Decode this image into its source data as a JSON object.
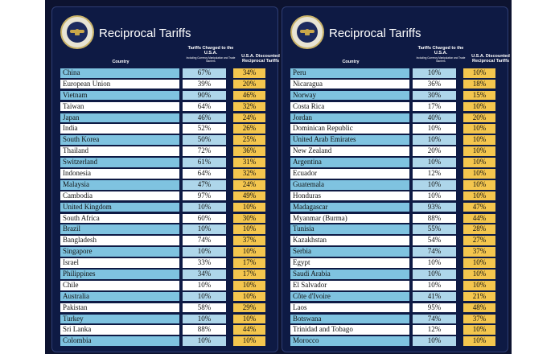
{
  "panels": [
    {
      "title": "Reciprocal Tariffs",
      "headers": {
        "country": "Country",
        "charged": "Tariffs Charged to the U.S.A.",
        "charged_sub": "Including Currency Manipulation and Trade Barriers",
        "discounted": "U.S.A. Discounted Reciprocal Tariffs"
      },
      "rows": [
        {
          "country": "China",
          "charged": "67%",
          "discounted": "34%"
        },
        {
          "country": "European Union",
          "charged": "39%",
          "discounted": "20%"
        },
        {
          "country": "Vietnam",
          "charged": "90%",
          "discounted": "46%"
        },
        {
          "country": "Taiwan",
          "charged": "64%",
          "discounted": "32%"
        },
        {
          "country": "Japan",
          "charged": "46%",
          "discounted": "24%"
        },
        {
          "country": "India",
          "charged": "52%",
          "discounted": "26%"
        },
        {
          "country": "South Korea",
          "charged": "50%",
          "discounted": "25%"
        },
        {
          "country": "Thailand",
          "charged": "72%",
          "discounted": "36%"
        },
        {
          "country": "Switzerland",
          "charged": "61%",
          "discounted": "31%"
        },
        {
          "country": "Indonesia",
          "charged": "64%",
          "discounted": "32%"
        },
        {
          "country": "Malaysia",
          "charged": "47%",
          "discounted": "24%"
        },
        {
          "country": "Cambodia",
          "charged": "97%",
          "discounted": "49%"
        },
        {
          "country": "United Kingdom",
          "charged": "10%",
          "discounted": "10%"
        },
        {
          "country": "South Africa",
          "charged": "60%",
          "discounted": "30%"
        },
        {
          "country": "Brazil",
          "charged": "10%",
          "discounted": "10%"
        },
        {
          "country": "Bangladesh",
          "charged": "74%",
          "discounted": "37%"
        },
        {
          "country": "Singapore",
          "charged": "10%",
          "discounted": "10%"
        },
        {
          "country": "Israel",
          "charged": "33%",
          "discounted": "17%"
        },
        {
          "country": "Philippines",
          "charged": "34%",
          "discounted": "17%"
        },
        {
          "country": "Chile",
          "charged": "10%",
          "discounted": "10%"
        },
        {
          "country": "Australia",
          "charged": "10%",
          "discounted": "10%"
        },
        {
          "country": "Pakistan",
          "charged": "58%",
          "discounted": "29%"
        },
        {
          "country": "Turkey",
          "charged": "10%",
          "discounted": "10%"
        },
        {
          "country": "Sri Lanka",
          "charged": "88%",
          "discounted": "44%"
        },
        {
          "country": "Colombia",
          "charged": "10%",
          "discounted": "10%"
        }
      ]
    },
    {
      "title": "Reciprocal Tariffs",
      "headers": {
        "country": "Country",
        "charged": "Tariffs Charged to the U.S.A.",
        "charged_sub": "Including Currency Manipulation and Trade Barriers",
        "discounted": "U.S.A. Discounted Reciprocal Tariffs"
      },
      "rows": [
        {
          "country": "Peru",
          "charged": "10%",
          "discounted": "10%"
        },
        {
          "country": "Nicaragua",
          "charged": "36%",
          "discounted": "18%"
        },
        {
          "country": "Norway",
          "charged": "30%",
          "discounted": "15%"
        },
        {
          "country": "Costa Rica",
          "charged": "17%",
          "discounted": "10%"
        },
        {
          "country": "Jordan",
          "charged": "40%",
          "discounted": "20%"
        },
        {
          "country": "Dominican Republic",
          "charged": "10%",
          "discounted": "10%"
        },
        {
          "country": "United Arab Emirates",
          "charged": "10%",
          "discounted": "10%"
        },
        {
          "country": "New Zealand",
          "charged": "20%",
          "discounted": "10%"
        },
        {
          "country": "Argentina",
          "charged": "10%",
          "discounted": "10%"
        },
        {
          "country": "Ecuador",
          "charged": "12%",
          "discounted": "10%"
        },
        {
          "country": "Guatemala",
          "charged": "10%",
          "discounted": "10%"
        },
        {
          "country": "Honduras",
          "charged": "10%",
          "discounted": "10%"
        },
        {
          "country": "Madagascar",
          "charged": "93%",
          "discounted": "47%"
        },
        {
          "country": "Myanmar (Burma)",
          "charged": "88%",
          "discounted": "44%"
        },
        {
          "country": "Tunisia",
          "charged": "55%",
          "discounted": "28%"
        },
        {
          "country": "Kazakhstan",
          "charged": "54%",
          "discounted": "27%"
        },
        {
          "country": "Serbia",
          "charged": "74%",
          "discounted": "37%"
        },
        {
          "country": "Egypt",
          "charged": "10%",
          "discounted": "10%"
        },
        {
          "country": "Saudi Arabia",
          "charged": "10%",
          "discounted": "10%"
        },
        {
          "country": "El Salvador",
          "charged": "10%",
          "discounted": "10%"
        },
        {
          "country": "Côte d'Ivoire",
          "charged": "41%",
          "discounted": "21%"
        },
        {
          "country": "Laos",
          "charged": "95%",
          "discounted": "48%"
        },
        {
          "country": "Botswana",
          "charged": "74%",
          "discounted": "37%"
        },
        {
          "country": "Trinidad and Tobago",
          "charged": "12%",
          "discounted": "10%"
        },
        {
          "country": "Morocco",
          "charged": "10%",
          "discounted": "10%"
        }
      ]
    }
  ],
  "colors": {
    "background": "#0d1330",
    "panel": "#0e1a44",
    "row_blue": "#7fc3e0",
    "cell_blue": "#aed6ea",
    "discount_yellow": "#f4c64e"
  },
  "icons": {
    "seal": "presidential-seal-icon"
  }
}
